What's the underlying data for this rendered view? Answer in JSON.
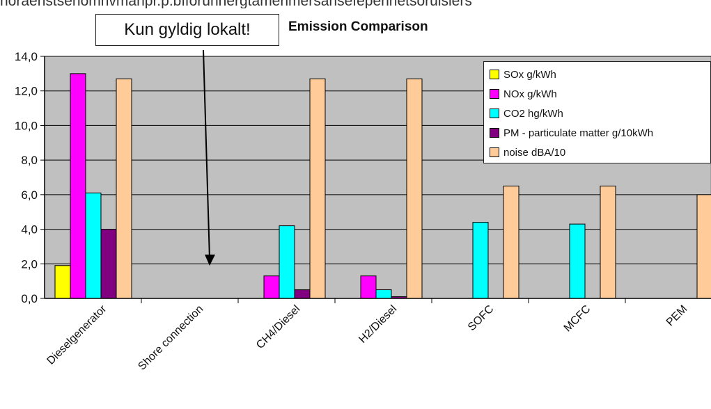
{
  "top_text": "noraenstsenomhvmanpr.p.bfforunhergtamenmersansefepennetsoruisiers",
  "callout": {
    "text": "Kun gyldig lokalt!"
  },
  "chart_data": {
    "type": "bar",
    "title": "Emission Comparison",
    "xlabel": "",
    "ylabel": "",
    "ylim": [
      0,
      14
    ],
    "ytick_labels": [
      "0,0",
      "2,0",
      "4,0",
      "6,0",
      "8,0",
      "10,0",
      "12,0",
      "14,0"
    ],
    "grid": true,
    "legend_position": "top-right",
    "categories": [
      "Dieselgenerator",
      "Shore connection",
      "CH4/Diesel",
      "H2/Diesel",
      "SOFC",
      "MCFC",
      "PEM"
    ],
    "series": [
      {
        "name": "SOx g/kWh",
        "color": "#ffff00",
        "values": [
          1.9,
          0,
          0,
          0,
          0,
          0,
          0
        ]
      },
      {
        "name": "NOx g/kWh",
        "color": "#ff00ff",
        "values": [
          13.0,
          0,
          1.3,
          1.3,
          0,
          0,
          0
        ]
      },
      {
        "name": "CO2 hg/kWh",
        "color": "#00ffff",
        "values": [
          6.1,
          0,
          4.2,
          0.5,
          4.4,
          4.3,
          0
        ]
      },
      {
        "name": "PM - particulate matter  g/10kWh",
        "color": "#800080",
        "values": [
          4.0,
          0,
          0.5,
          0.1,
          0,
          0,
          0
        ]
      },
      {
        "name": "noise  dBA/10",
        "color": "#ffcc99",
        "values": [
          12.7,
          0,
          12.7,
          12.7,
          6.5,
          6.5,
          6.0
        ]
      }
    ]
  }
}
